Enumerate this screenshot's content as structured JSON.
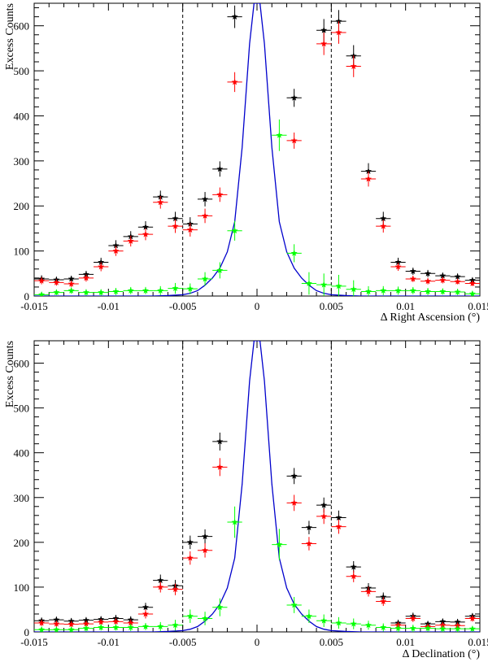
{
  "chart_data": [
    {
      "type": "scatter",
      "panel": "top",
      "xlabel": "Δ Right Ascension (°)",
      "ylabel": "Excess Counts",
      "xlim": [
        -0.015,
        0.015
      ],
      "ylim": [
        0,
        650
      ],
      "xticks": [
        -0.015,
        -0.01,
        -0.005,
        0,
        0.005,
        0.01,
        0.015
      ],
      "xtick_labels": [
        "-0.015",
        "-0.01",
        "-0.005",
        "0",
        "0.005",
        "0.01",
        "0.015"
      ],
      "yticks": [
        0,
        100,
        200,
        300,
        400,
        500,
        600
      ],
      "ytick_labels": [
        "0",
        "100",
        "200",
        "300",
        "400",
        "500",
        "600"
      ],
      "vlines": [
        -0.005,
        0.005
      ],
      "x": [
        -0.0145,
        -0.0135,
        -0.0125,
        -0.0115,
        -0.0105,
        -0.0095,
        -0.0085,
        -0.0075,
        -0.0065,
        -0.0055,
        -0.0045,
        -0.0035,
        -0.0025,
        -0.0015,
        -0.0005,
        0.0005,
        0.0015,
        0.0025,
        0.0035,
        0.0045,
        0.0055,
        0.0065,
        0.0075,
        0.0085,
        0.0095,
        0.0105,
        0.0115,
        0.0125,
        0.0135,
        0.0145
      ],
      "series": [
        {
          "name": "black",
          "color": "#000000",
          "values": [
            38,
            36,
            38,
            48,
            75,
            112,
            132,
            153,
            220,
            172,
            160,
            215,
            282,
            620,
            null,
            null,
            null,
            440,
            null,
            590,
            610,
            533,
            277,
            172,
            75,
            55,
            50,
            45,
            43,
            35
          ],
          "errors": [
            8,
            7,
            7,
            8,
            10,
            12,
            12,
            13,
            14,
            15,
            15,
            16,
            17,
            25,
            null,
            null,
            null,
            20,
            null,
            25,
            25,
            24,
            18,
            15,
            10,
            8,
            8,
            7,
            7,
            6
          ]
        },
        {
          "name": "red",
          "color": "#ff0000",
          "values": [
            34,
            30,
            27,
            40,
            65,
            100,
            122,
            137,
            208,
            155,
            147,
            178,
            225,
            475,
            null,
            null,
            null,
            345,
            null,
            560,
            585,
            510,
            260,
            155,
            65,
            38,
            33,
            35,
            32,
            28
          ],
          "errors": [
            8,
            7,
            7,
            8,
            10,
            11,
            12,
            13,
            14,
            15,
            15,
            16,
            16,
            22,
            null,
            null,
            null,
            18,
            null,
            25,
            25,
            24,
            17,
            14,
            9,
            7,
            7,
            7,
            6,
            6
          ]
        },
        {
          "name": "green",
          "color": "#00ff00",
          "values": [
            3,
            8,
            12,
            8,
            8,
            10,
            12,
            12,
            12,
            17,
            16,
            38,
            57,
            145,
            null,
            null,
            357,
            95,
            28,
            25,
            22,
            15,
            10,
            12,
            12,
            12,
            10,
            10,
            9,
            5
          ],
          "errors": [
            6,
            6,
            7,
            7,
            7,
            8,
            8,
            8,
            10,
            12,
            12,
            15,
            18,
            22,
            null,
            null,
            35,
            20,
            25,
            25,
            25,
            20,
            12,
            10,
            9,
            8,
            8,
            7,
            7,
            6
          ]
        }
      ],
      "model_curve": {
        "name": "blue",
        "color": "#0000cc",
        "x": [
          -0.015,
          -0.013,
          -0.011,
          -0.009,
          -0.008,
          -0.007,
          -0.006,
          -0.005,
          -0.0045,
          -0.004,
          -0.0035,
          -0.003,
          -0.0025,
          -0.002,
          -0.0015,
          -0.001,
          -0.0005,
          -0.0002,
          0,
          0.0002,
          0.0005,
          0.001,
          0.0015,
          0.002,
          0.0025,
          0.003,
          0.0035,
          0.004,
          0.0045,
          0.005,
          0.006,
          0.007,
          0.008,
          0.009,
          0.011,
          0.013,
          0.015
        ],
        "y": [
          0,
          0,
          0,
          0,
          0,
          0,
          1,
          3,
          6,
          12,
          24,
          40,
          62,
          98,
          165,
          330,
          560,
          650,
          650,
          650,
          560,
          330,
          165,
          98,
          62,
          40,
          24,
          12,
          6,
          3,
          1,
          0,
          0,
          0,
          0,
          0,
          0
        ]
      }
    },
    {
      "type": "scatter",
      "panel": "bottom",
      "xlabel": "Δ Declination (°)",
      "ylabel": "Excess Counts",
      "xlim": [
        -0.015,
        0.015
      ],
      "ylim": [
        0,
        650
      ],
      "xticks": [
        -0.015,
        -0.01,
        -0.005,
        0,
        0.005,
        0.01,
        0.015
      ],
      "xtick_labels": [
        "-0.015",
        "-0.01",
        "-0.005",
        "0",
        "0.005",
        "0.01",
        "0.015"
      ],
      "yticks": [
        0,
        100,
        200,
        300,
        400,
        500,
        600
      ],
      "ytick_labels": [
        "0",
        "100",
        "200",
        "300",
        "400",
        "500",
        "600"
      ],
      "vlines": [
        -0.005,
        0.005
      ],
      "x": [
        -0.0145,
        -0.0135,
        -0.0125,
        -0.0115,
        -0.0105,
        -0.0095,
        -0.0085,
        -0.0075,
        -0.0065,
        -0.0055,
        -0.0045,
        -0.0035,
        -0.0025,
        -0.0015,
        -0.0005,
        0.0005,
        0.0015,
        0.0025,
        0.0035,
        0.0045,
        0.0055,
        0.0065,
        0.0075,
        0.0085,
        0.0095,
        0.0105,
        0.0115,
        0.0125,
        0.0135,
        0.0145
      ],
      "series": [
        {
          "name": "black",
          "color": "#000000",
          "values": [
            25,
            27,
            24,
            26,
            28,
            30,
            27,
            55,
            115,
            103,
            200,
            213,
            425,
            null,
            null,
            null,
            null,
            348,
            233,
            283,
            255,
            145,
            98,
            78,
            20,
            35,
            18,
            23,
            22,
            35
          ],
          "errors": [
            7,
            7,
            7,
            7,
            7,
            8,
            8,
            10,
            13,
            13,
            15,
            16,
            20,
            null,
            null,
            null,
            null,
            18,
            15,
            17,
            16,
            13,
            11,
            10,
            7,
            8,
            6,
            7,
            7,
            7
          ]
        },
        {
          "name": "red",
          "color": "#ff0000",
          "values": [
            20,
            18,
            17,
            18,
            22,
            23,
            20,
            40,
            100,
            95,
            165,
            182,
            368,
            null,
            null,
            null,
            null,
            288,
            197,
            258,
            235,
            124,
            90,
            68,
            15,
            30,
            12,
            15,
            14,
            30
          ],
          "errors": [
            7,
            7,
            7,
            7,
            7,
            8,
            8,
            10,
            12,
            13,
            15,
            16,
            20,
            null,
            null,
            null,
            null,
            18,
            15,
            17,
            16,
            13,
            11,
            10,
            7,
            8,
            6,
            7,
            7,
            7
          ]
        },
        {
          "name": "green",
          "color": "#00ff00",
          "values": [
            5,
            5,
            5,
            8,
            10,
            10,
            10,
            12,
            12,
            15,
            35,
            30,
            55,
            245,
            null,
            null,
            195,
            60,
            35,
            25,
            20,
            18,
            15,
            10,
            8,
            8,
            8,
            7,
            7,
            7
          ],
          "errors": [
            6,
            6,
            6,
            7,
            7,
            7,
            8,
            8,
            10,
            12,
            15,
            15,
            20,
            35,
            null,
            null,
            35,
            18,
            15,
            14,
            13,
            12,
            10,
            9,
            8,
            8,
            7,
            7,
            7,
            6
          ]
        }
      ],
      "model_curve": {
        "name": "blue",
        "color": "#0000cc",
        "x": [
          -0.015,
          -0.013,
          -0.011,
          -0.009,
          -0.008,
          -0.007,
          -0.006,
          -0.005,
          -0.0045,
          -0.004,
          -0.0035,
          -0.003,
          -0.0025,
          -0.002,
          -0.0015,
          -0.001,
          -0.0005,
          -0.0002,
          0,
          0.0002,
          0.0005,
          0.001,
          0.0015,
          0.002,
          0.0025,
          0.003,
          0.0035,
          0.004,
          0.0045,
          0.005,
          0.006,
          0.007,
          0.008,
          0.009,
          0.011,
          0.013,
          0.015
        ],
        "y": [
          0,
          0,
          0,
          0,
          0,
          0,
          1,
          3,
          6,
          12,
          24,
          40,
          62,
          98,
          165,
          330,
          560,
          650,
          650,
          650,
          560,
          330,
          165,
          98,
          62,
          40,
          24,
          12,
          6,
          3,
          1,
          0,
          0,
          0,
          0,
          0,
          0
        ]
      }
    }
  ]
}
